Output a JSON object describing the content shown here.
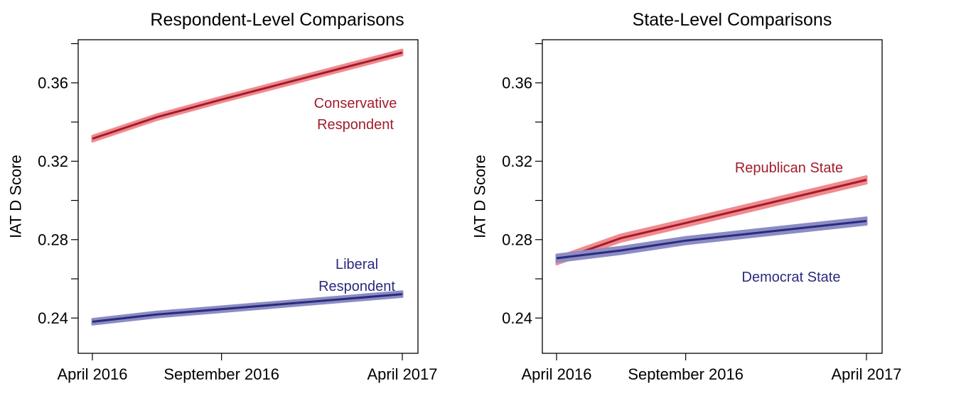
{
  "colors": {
    "red_line": "#a21c2a",
    "red_band": "#f08a8f",
    "blue_line": "#2a2a7e",
    "blue_band": "#8c8cc4"
  },
  "chart_data": [
    {
      "type": "line",
      "title": "Respondent-Level Comparisons",
      "xlabel": "",
      "ylabel": "IAT D Score",
      "x_ticks": [
        "April 2016",
        "September 2016",
        "April 2017"
      ],
      "x_tick_positions": [
        0,
        5,
        12
      ],
      "x": [
        0,
        2.5,
        5,
        12
      ],
      "ylim": [
        0.222,
        0.382
      ],
      "y_ticks": [
        0.24,
        0.28,
        0.32,
        0.36
      ],
      "y_tick_labels": [
        "0.24",
        "0.28",
        "0.32",
        "0.36"
      ],
      "grid": false,
      "series": [
        {
          "name": "Conservative Respondent",
          "label_lines": [
            "Conservative",
            "Respondent"
          ],
          "color": "red",
          "values": [
            0.3315,
            0.3425,
            0.3515,
            0.3755
          ],
          "band_halfwidth": 0.0014
        },
        {
          "name": "Liberal Respondent",
          "label_lines": [
            "Liberal",
            "Respondent"
          ],
          "color": "blue",
          "values": [
            0.2381,
            0.2418,
            0.2445,
            0.2522
          ],
          "band_halfwidth": 0.0014
        }
      ]
    },
    {
      "type": "line",
      "title": "State-Level Comparisons",
      "xlabel": "",
      "ylabel": "IAT D Score",
      "x_ticks": [
        "April 2016",
        "September 2016",
        "April 2017"
      ],
      "x_tick_positions": [
        0,
        5,
        12
      ],
      "x": [
        0,
        2.5,
        5,
        12
      ],
      "ylim": [
        0.222,
        0.382
      ],
      "y_ticks": [
        0.24,
        0.28,
        0.32,
        0.36
      ],
      "y_tick_labels": [
        "0.24",
        "0.28",
        "0.32",
        "0.36"
      ],
      "grid": false,
      "series": [
        {
          "name": "Republican State",
          "label_lines": [
            "Republican State"
          ],
          "color": "red",
          "values": [
            0.2692,
            0.2808,
            0.2885,
            0.3105
          ],
          "band_halfwidth": 0.0018
        },
        {
          "name": "Democrat State",
          "label_lines": [
            "Democrat State"
          ],
          "color": "blue",
          "values": [
            0.2705,
            0.2745,
            0.2795,
            0.2895
          ],
          "band_halfwidth": 0.0018
        }
      ]
    }
  ]
}
